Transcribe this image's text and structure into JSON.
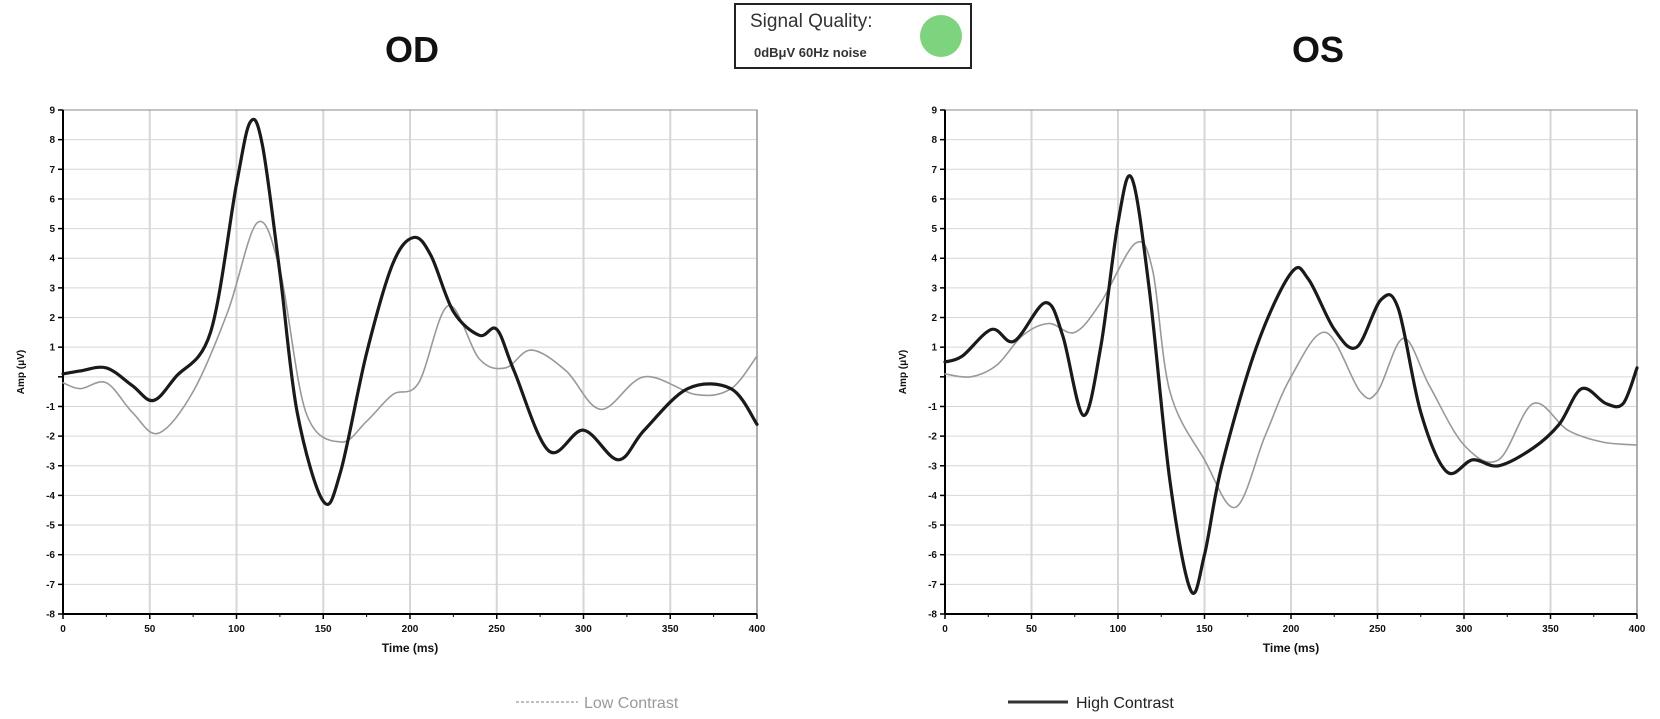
{
  "status": {
    "title": "Signal Quality:",
    "subtitle": "0dBμV 60Hz noise",
    "indicator_color": "#7ed37e"
  },
  "legend": {
    "low_label": "Low Contrast",
    "high_label": "High Contrast"
  },
  "chart_data": [
    {
      "type": "line",
      "title": "OD",
      "xlabel": "Time (ms)",
      "ylabel": "Amp (μV)",
      "xlim": [
        0,
        400
      ],
      "ylim": [
        -8,
        9
      ],
      "xticks": [
        0,
        50,
        100,
        150,
        200,
        250,
        300,
        350,
        400
      ],
      "yticks": [
        9,
        8,
        7,
        6,
        5,
        4,
        3,
        2,
        1,
        "",
        -1,
        -2,
        -3,
        -4,
        -5,
        -6,
        -7,
        -8
      ],
      "grid": true,
      "series": [
        {
          "name": "Low Contrast",
          "color": "#999999",
          "x": [
            0,
            10,
            25,
            40,
            55,
            75,
            95,
            112,
            125,
            140,
            160,
            175,
            190,
            205,
            222,
            240,
            255,
            270,
            290,
            310,
            335,
            365,
            385,
            400
          ],
          "y": [
            -0.2,
            -0.4,
            -0.2,
            -1.2,
            -1.9,
            -0.5,
            2.2,
            5.2,
            3.6,
            -1.2,
            -2.2,
            -1.5,
            -0.6,
            -0.2,
            2.4,
            0.6,
            0.3,
            0.9,
            0.2,
            -1.1,
            0,
            -0.6,
            -0.4,
            0.7
          ]
        },
        {
          "name": "High Contrast",
          "color": "#1a1a1a",
          "x": [
            0,
            10,
            25,
            40,
            52,
            65,
            85,
            100,
            108,
            115,
            125,
            135,
            150,
            160,
            175,
            190,
            202,
            212,
            225,
            240,
            250,
            260,
            280,
            300,
            320,
            335,
            360,
            385,
            400
          ],
          "y": [
            0.1,
            0.2,
            0.3,
            -0.3,
            -0.8,
            0,
            1.5,
            6.5,
            8.6,
            7.8,
            3.5,
            -1.2,
            -4.2,
            -3.2,
            0.8,
            3.8,
            4.7,
            4.1,
            2.2,
            1.4,
            1.6,
            0.2,
            -2.5,
            -1.8,
            -2.8,
            -1.8,
            -0.4,
            -0.4,
            -1.6
          ]
        }
      ]
    },
    {
      "type": "line",
      "title": "OS",
      "xlabel": "Time (ms)",
      "ylabel": "Amp (μV)",
      "xlim": [
        0,
        400
      ],
      "ylim": [
        -8,
        9
      ],
      "xticks": [
        0,
        50,
        100,
        150,
        200,
        250,
        300,
        350,
        400
      ],
      "yticks": [
        9,
        8,
        7,
        6,
        5,
        4,
        3,
        2,
        1,
        "",
        -1,
        -2,
        -3,
        -4,
        -5,
        -6,
        -7,
        -8
      ],
      "grid": true,
      "series": [
        {
          "name": "Low Contrast",
          "color": "#999999",
          "x": [
            0,
            15,
            30,
            45,
            60,
            75,
            90,
            110,
            120,
            130,
            150,
            168,
            185,
            200,
            220,
            240,
            250,
            265,
            280,
            300,
            320,
            340,
            360,
            380,
            400
          ],
          "y": [
            0.1,
            0,
            0.4,
            1.4,
            1.8,
            1.5,
            2.5,
            4.5,
            3.6,
            -0.5,
            -2.8,
            -4.4,
            -2,
            0,
            1.5,
            -0.5,
            -0.5,
            1.3,
            -0.3,
            -2.3,
            -2.8,
            -0.9,
            -1.8,
            -2.2,
            -2.3
          ]
        },
        {
          "name": "High Contrast",
          "color": "#1a1a1a",
          "x": [
            0,
            10,
            27,
            40,
            58,
            68,
            80,
            90,
            100,
            108,
            118,
            130,
            142,
            150,
            160,
            180,
            200,
            210,
            225,
            238,
            252,
            262,
            275,
            290,
            305,
            320,
            340,
            355,
            368,
            382,
            392,
            400
          ],
          "y": [
            0.5,
            0.7,
            1.6,
            1.2,
            2.5,
            1.4,
            -1.3,
            1.0,
            5.2,
            6.7,
            3.0,
            -3.5,
            -7.2,
            -6.0,
            -3.0,
            1.0,
            3.5,
            3.3,
            1.6,
            1.0,
            2.6,
            2.3,
            -1.2,
            -3.2,
            -2.8,
            -3.0,
            -2.4,
            -1.6,
            -0.4,
            -0.9,
            -0.9,
            0.3
          ]
        }
      ]
    }
  ]
}
